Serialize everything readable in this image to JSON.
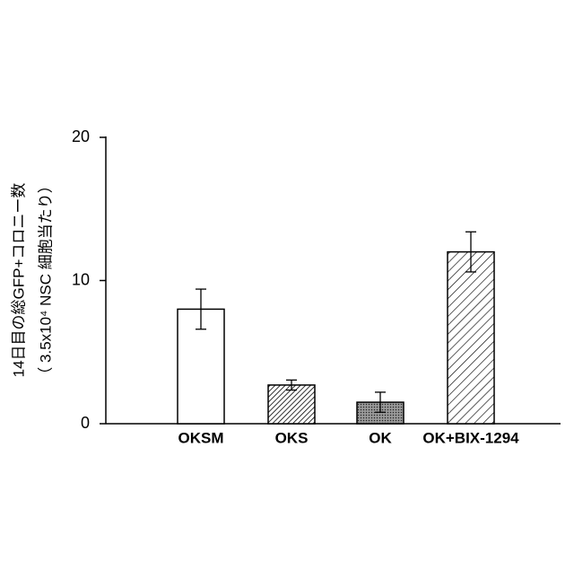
{
  "chart_data": {
    "type": "bar",
    "ylabel": [
      "14日目の総GFP+コロニー数",
      "（ 3.5x10⁴ NSC 細胞当たり）"
    ],
    "categories": [
      "OKSM",
      "OKS",
      "OK",
      "OK+BIX-1294"
    ],
    "values": [
      8,
      2.7,
      1.5,
      12
    ],
    "errors": [
      1.4,
      0.35,
      0.7,
      1.4
    ],
    "color": "#000000",
    "ylim": [
      0,
      20
    ],
    "yticks": [
      0,
      10,
      20
    ]
  }
}
